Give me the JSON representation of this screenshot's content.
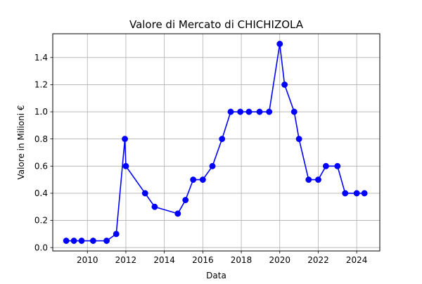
{
  "chart_data": {
    "type": "line",
    "title": "Valore di Mercato di CHICHIZOLA",
    "xlabel": "Data",
    "ylabel": "Valore in Milioni €",
    "xlim": [
      2008.2,
      2025.2
    ],
    "ylim": [
      -0.025,
      1.575
    ],
    "xticks": [
      2010,
      2012,
      2014,
      2016,
      2018,
      2020,
      2022,
      2024
    ],
    "yticks": [
      0.0,
      0.2,
      0.4,
      0.6,
      0.8,
      1.0,
      1.2,
      1.4
    ],
    "grid": true,
    "marker": "circle",
    "color": "#0000ff",
    "series": [
      {
        "x": [
          2008.9,
          2009.3,
          2009.7,
          2010.3,
          2011.0,
          2011.5,
          2011.95,
          2012.0,
          2013.0,
          2013.5,
          2014.7,
          2015.1,
          2015.5,
          2016.0,
          2016.5,
          2017.0,
          2017.45,
          2017.95,
          2018.4,
          2018.95,
          2019.45,
          2020.0,
          2020.25,
          2020.75,
          2021.0,
          2021.5,
          2022.0,
          2022.4,
          2023.0,
          2023.4,
          2024.0,
          2024.4
        ],
        "values": [
          0.05,
          0.05,
          0.05,
          0.05,
          0.05,
          0.1,
          0.8,
          0.6,
          0.4,
          0.3,
          0.25,
          0.35,
          0.5,
          0.5,
          0.6,
          0.8,
          1.0,
          1.0,
          1.0,
          1.0,
          1.0,
          1.5,
          1.2,
          1.0,
          0.8,
          0.5,
          0.5,
          0.6,
          0.6,
          0.4,
          0.4,
          0.4
        ]
      }
    ]
  }
}
